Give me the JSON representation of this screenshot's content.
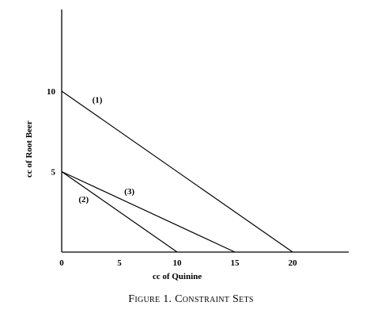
{
  "chart_data": {
    "type": "line",
    "xlabel": "cc of Quinine",
    "ylabel": "cc of Root Beer",
    "xlim": [
      0,
      25
    ],
    "ylim": [
      0,
      14
    ],
    "x_ticks": [
      "0",
      "5",
      "10",
      "15",
      "20"
    ],
    "x_tick_values": [
      0,
      5,
      10,
      15,
      20
    ],
    "y_ticks": [
      "5",
      "10"
    ],
    "y_tick_values": [
      5,
      10
    ],
    "grid": false,
    "series": [
      {
        "name": "(1)",
        "x": [
          0,
          20
        ],
        "y": [
          10,
          0
        ]
      },
      {
        "name": "(2)",
        "x": [
          0,
          10
        ],
        "y": [
          5,
          0
        ]
      },
      {
        "name": "(3)",
        "x": [
          0,
          15
        ],
        "y": [
          5,
          0
        ]
      }
    ]
  },
  "caption": {
    "prefix": "Figure 1.",
    "title": "Constraint Sets"
  }
}
